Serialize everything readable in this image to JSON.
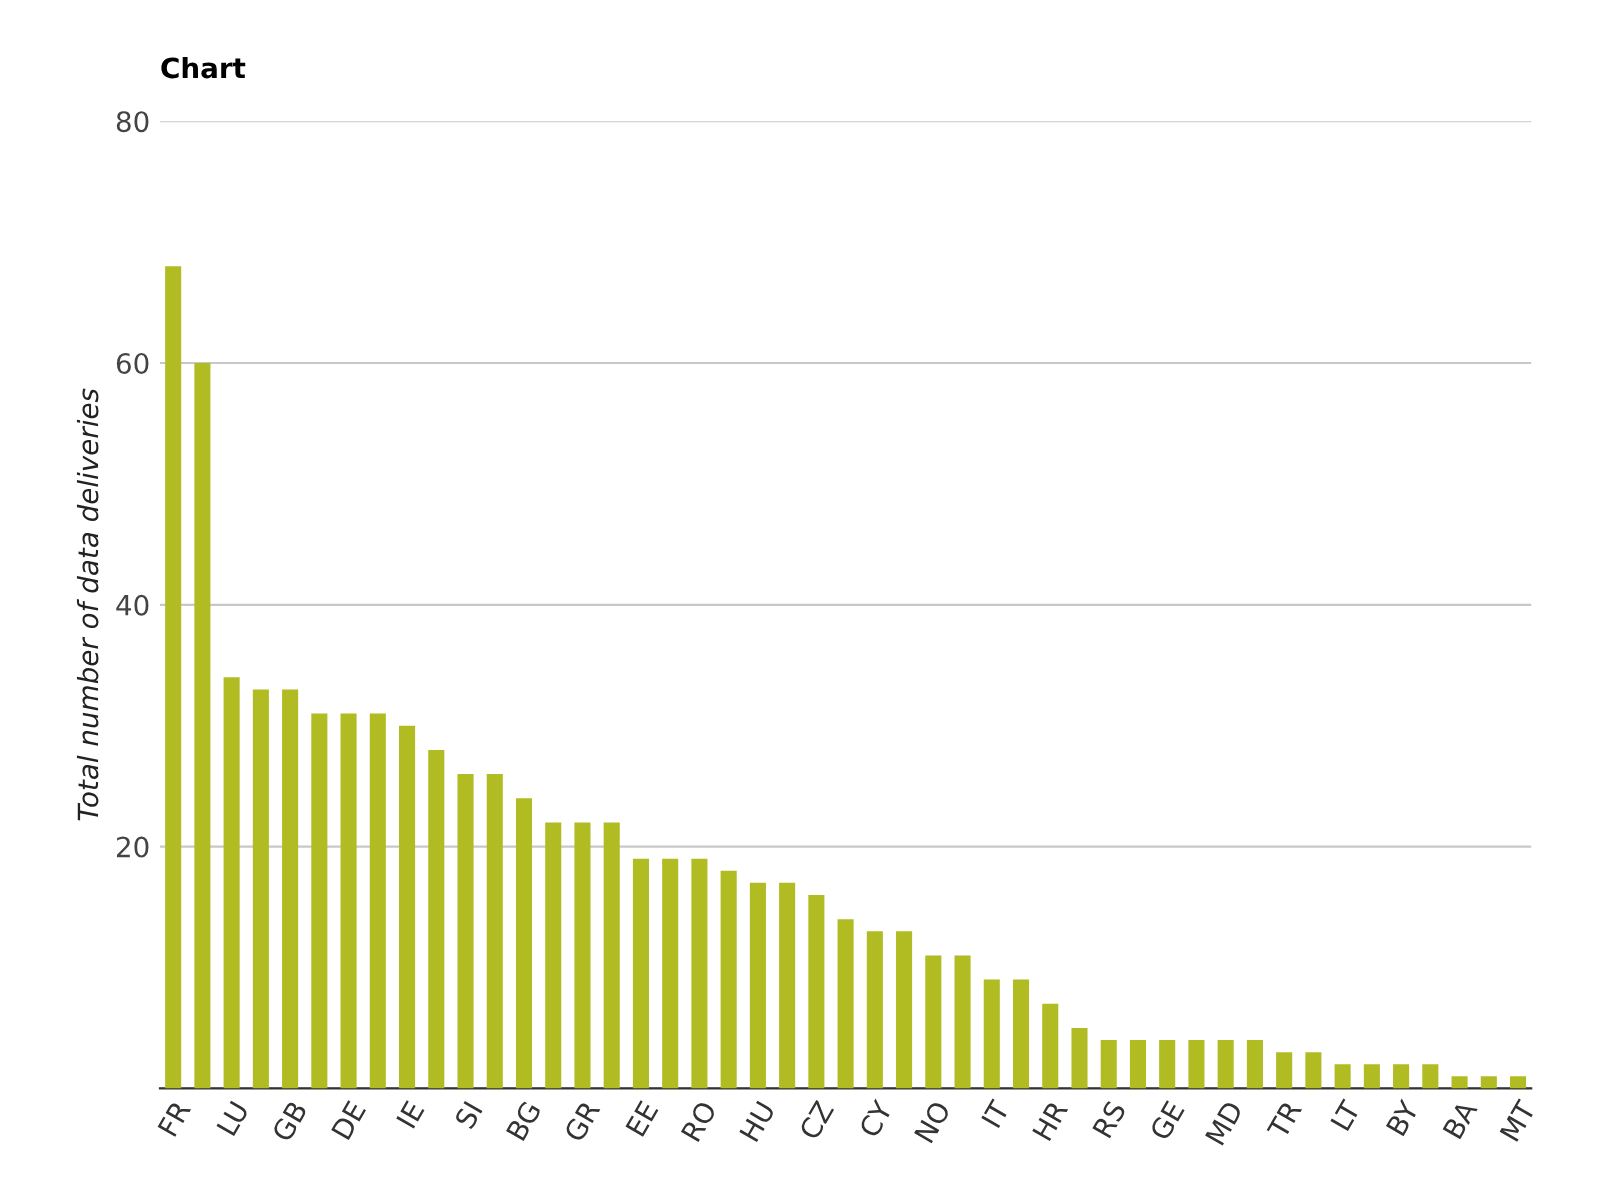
{
  "chart_data": {
    "type": "bar",
    "title": "Chart",
    "ylabel": "Total number of data deliveries",
    "categories": [
      "FR",
      null,
      "LU",
      null,
      "GB",
      null,
      "DE",
      null,
      "IE",
      null,
      "SI",
      null,
      "BG",
      null,
      "GR",
      null,
      "EE",
      null,
      "RO",
      null,
      "HU",
      null,
      "CZ",
      null,
      "CY",
      null,
      "NO",
      null,
      "IT",
      null,
      "HR",
      null,
      "RS",
      null,
      "GE",
      null,
      "MD",
      null,
      "TR",
      null,
      "LT",
      null,
      "BY",
      null,
      "BA",
      null,
      "MT"
    ],
    "values": [
      68,
      60,
      34,
      33,
      33,
      31,
      31,
      31,
      30,
      28,
      26,
      26,
      24,
      22,
      22,
      22,
      19,
      19,
      19,
      18,
      17,
      17,
      16,
      14,
      13,
      13,
      11,
      11,
      9,
      9,
      7,
      5,
      4,
      4,
      4,
      4,
      4,
      4,
      3,
      3,
      2,
      2,
      2,
      2,
      1,
      1,
      1
    ],
    "color": "#b0bc22",
    "ylim": [
      0,
      80
    ],
    "yticks": [
      {
        "value": 0,
        "label": null
      },
      20,
      40,
      60,
      80
    ],
    "grid": "y"
  }
}
